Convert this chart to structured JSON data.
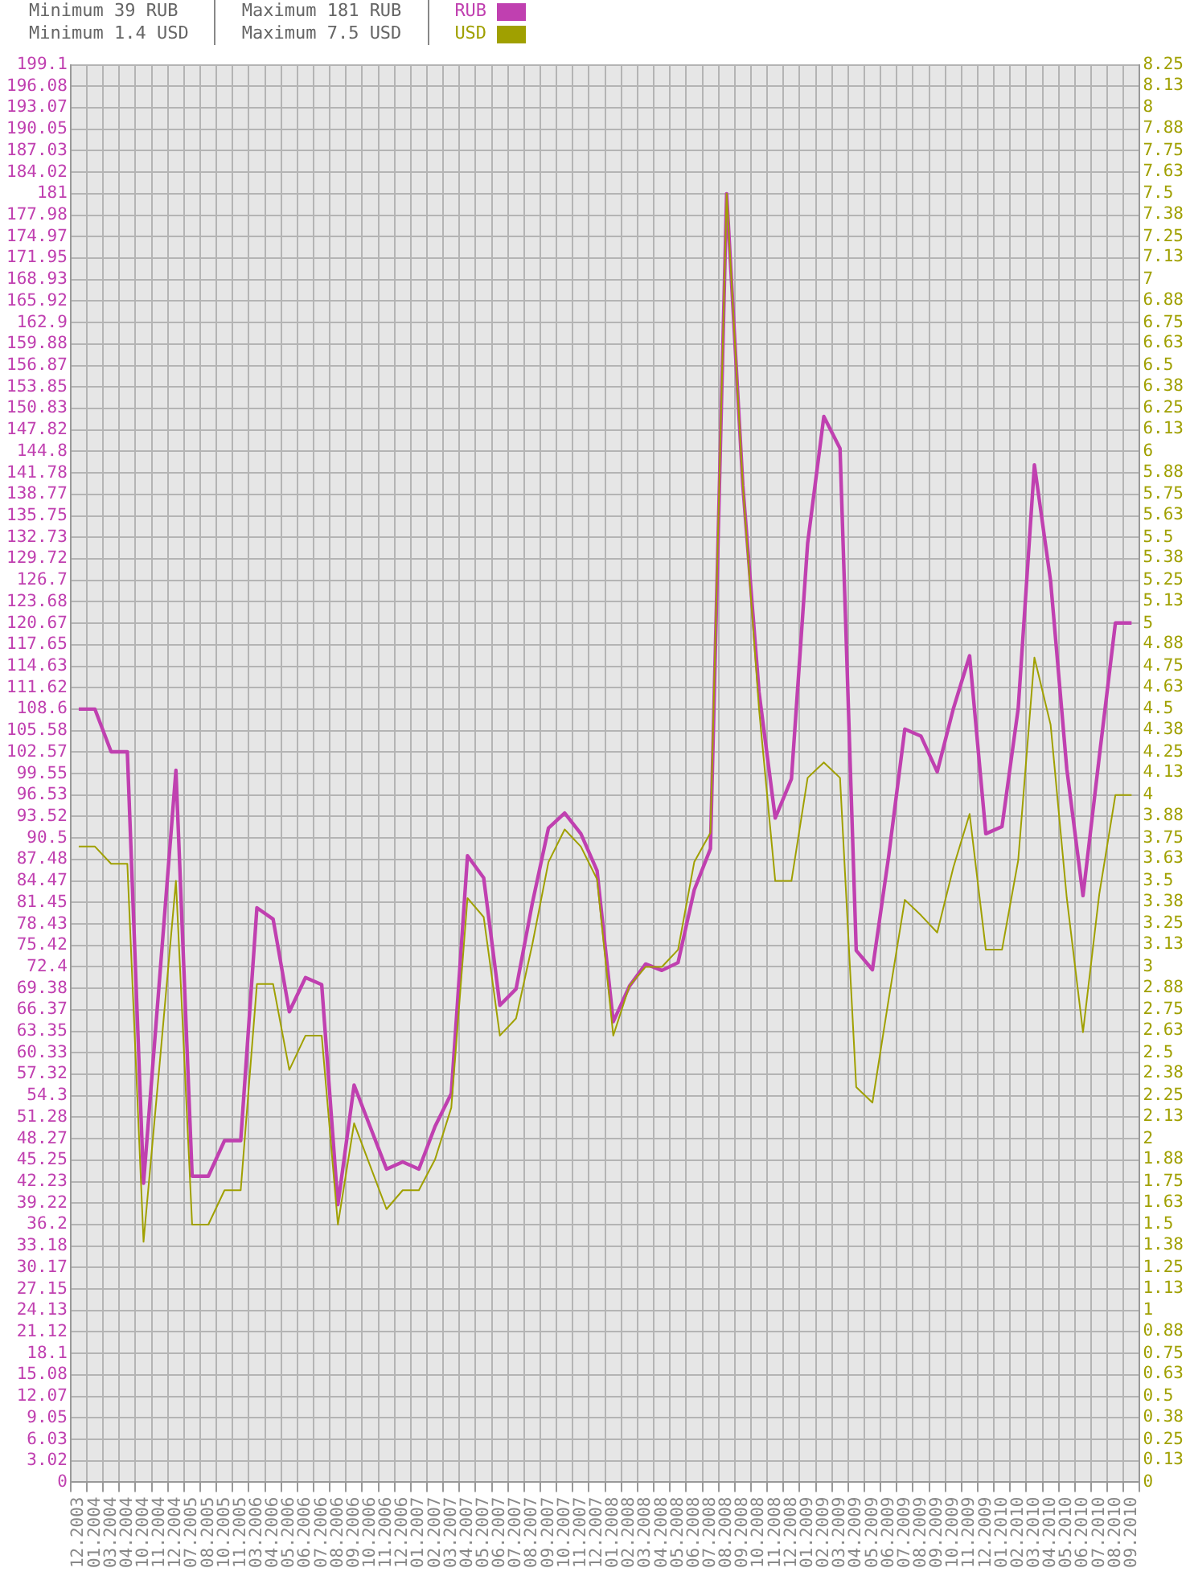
{
  "chart_data": {
    "type": "line",
    "annotations": [
      "Minimum 39 RUB",
      "Minimum 1.4 USD",
      "Maximum 181 RUB",
      "Maximum 7.5 USD"
    ],
    "categories": [
      "12.2003",
      "01.2004",
      "03.2004",
      "04.2004",
      "10.2004",
      "11.2004",
      "12.2004",
      "07.2005",
      "08.2005",
      "10.2005",
      "11.2005",
      "03.2006",
      "04.2006",
      "05.2006",
      "06.2006",
      "07.2006",
      "08.2006",
      "09.2006",
      "10.2006",
      "11.2006",
      "12.2006",
      "01.2007",
      "02.2007",
      "03.2007",
      "04.2007",
      "05.2007",
      "06.2007",
      "07.2007",
      "08.2007",
      "09.2007",
      "10.2007",
      "11.2007",
      "12.2007",
      "01.2008",
      "02.2008",
      "03.2008",
      "04.2008",
      "05.2008",
      "06.2008",
      "07.2008",
      "08.2008",
      "09.2008",
      "10.2008",
      "11.2008",
      "12.2008",
      "01.2009",
      "02.2009",
      "03.2009",
      "04.2009",
      "05.2009",
      "06.2009",
      "07.2009",
      "08.2009",
      "09.2009",
      "10.2009",
      "11.2009",
      "12.2009",
      "01.2010",
      "02.2010",
      "03.2010",
      "04.2010",
      "05.2010",
      "06.2010",
      "07.2010",
      "08.2010",
      "09.2010"
    ],
    "series": [
      {
        "name": "RUB",
        "color": "#c040b0",
        "values": [
          108.6,
          108.6,
          102.6,
          102.6,
          42,
          71,
          100,
          43,
          43,
          48,
          48,
          80.7,
          79.1,
          66.1,
          70.9,
          69.9,
          39,
          55.8,
          49.9,
          44,
          45,
          44,
          50,
          54.6,
          88,
          84.9,
          67,
          69.3,
          81.3,
          91.9,
          94,
          91.1,
          85.9,
          64.7,
          69.7,
          72.8,
          71.9,
          73,
          83.2,
          89,
          181,
          140,
          111,
          93.3,
          98.8,
          131.9,
          149.7,
          145.2,
          74.7,
          72,
          87.9,
          105.8,
          104.8,
          99.8,
          108.7,
          116.1,
          91.1,
          92.1,
          108.7,
          142.9,
          126.6,
          100.2,
          82.4,
          101.8,
          120.7,
          120.7
        ]
      },
      {
        "name": "USD",
        "color": "#a0a000",
        "axis": "y2",
        "values": [
          3.7,
          3.7,
          3.6,
          3.6,
          1.4,
          2.44,
          3.5,
          1.5,
          1.5,
          1.7,
          1.7,
          2.9,
          2.9,
          2.4,
          2.6,
          2.6,
          1.5,
          2.09,
          1.84,
          1.59,
          1.7,
          1.7,
          1.88,
          2.18,
          3.4,
          3.29,
          2.6,
          2.7,
          3.13,
          3.61,
          3.8,
          3.7,
          3.51,
          2.6,
          2.89,
          3,
          3,
          3.1,
          3.61,
          3.78,
          7.5,
          5.8,
          4.5,
          3.5,
          3.5,
          4.1,
          4.19,
          4.1,
          2.3,
          2.21,
          2.81,
          3.39,
          3.3,
          3.2,
          3.58,
          3.89,
          3.1,
          3.1,
          3.62,
          4.8,
          4.41,
          3.4,
          2.62,
          3.42,
          4,
          4
        ]
      }
    ],
    "ylim": [
      0,
      199.1
    ],
    "yticks": [
      0,
      3.02,
      6.03,
      9.05,
      12.07,
      15.08,
      18.1,
      21.12,
      24.13,
      27.15,
      30.17,
      33.18,
      36.2,
      39.22,
      42.23,
      45.25,
      48.27,
      51.28,
      54.3,
      57.32,
      60.33,
      63.35,
      66.37,
      69.38,
      72.4,
      75.42,
      78.43,
      81.45,
      84.47,
      87.48,
      90.5,
      93.52,
      96.53,
      99.55,
      102.57,
      105.58,
      108.6,
      111.62,
      114.63,
      117.65,
      120.67,
      123.68,
      126.7,
      129.72,
      132.73,
      135.75,
      138.77,
      141.78,
      144.8,
      147.82,
      150.83,
      153.85,
      156.87,
      159.88,
      162.9,
      165.92,
      168.93,
      171.95,
      174.97,
      177.98,
      181,
      184.02,
      187.03,
      190.05,
      193.07,
      196.08,
      199.1
    ],
    "y2lim": [
      0,
      8.25
    ],
    "y2ticks": [
      0,
      0.13,
      0.25,
      0.38,
      0.5,
      0.63,
      0.75,
      0.88,
      1,
      1.13,
      1.25,
      1.38,
      1.5,
      1.63,
      1.75,
      1.88,
      2,
      2.13,
      2.25,
      2.38,
      2.5,
      2.63,
      2.75,
      2.88,
      3,
      3.13,
      3.25,
      3.38,
      3.5,
      3.63,
      3.75,
      3.88,
      4,
      4.13,
      4.25,
      4.38,
      4.5,
      4.63,
      4.75,
      4.88,
      5,
      5.13,
      5.25,
      5.38,
      5.5,
      5.63,
      5.75,
      5.88,
      6,
      6.13,
      6.25,
      6.38,
      6.5,
      6.63,
      6.75,
      6.88,
      7,
      7.13,
      7.25,
      7.38,
      7.5,
      7.63,
      7.75,
      7.88,
      8,
      8.13,
      8.25
    ],
    "grid": true,
    "legend": "top",
    "marker": "none",
    "line_style": "solid"
  }
}
